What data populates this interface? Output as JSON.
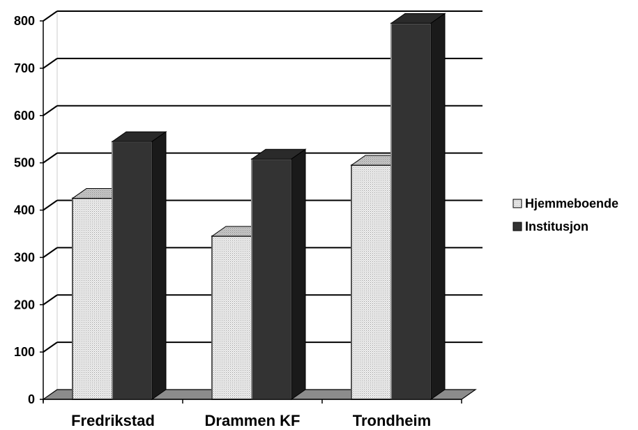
{
  "chart_data": {
    "type": "bar",
    "categories": [
      "Fredrikstad",
      "Drammen KF",
      "Trondheim"
    ],
    "series": [
      {
        "name": "Hjemmeboende",
        "values": [
          425,
          345,
          495
        ]
      },
      {
        "name": "Institusjon",
        "values": [
          545,
          508,
          795
        ]
      }
    ],
    "ylim": [
      0,
      800
    ],
    "yticks": [
      "0",
      "100",
      "200",
      "300",
      "400",
      "500",
      "600",
      "700",
      "800"
    ],
    "grid": true,
    "legend_position": "right",
    "style": "3d-clustered-column",
    "colors": {
      "Hjemmeboende": "#e6e6e6",
      "Institusjon": "#333333",
      "floor": "#8c8c8c",
      "grid": "#000000"
    }
  }
}
